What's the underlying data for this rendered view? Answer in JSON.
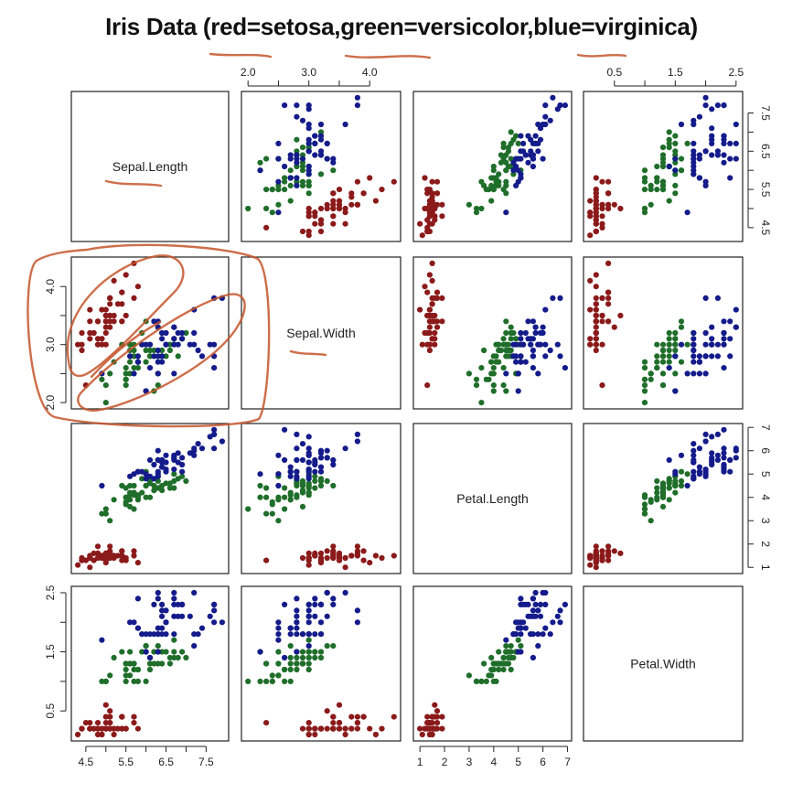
{
  "title": "Iris Data (red=setosa,green=versicolor,blue=virginica)",
  "colors": {
    "setosa": "#8b1a1a",
    "versicolor": "#1f6e2a",
    "virginica": "#141b8a",
    "annotation": "#c4552a"
  },
  "chart_data": {
    "type": "scatter",
    "title": "Iris Data (red=setosa,green=versicolor,blue=virginica)",
    "matrix": "pairs",
    "grid": false,
    "variables": [
      {
        "name": "Sepal.Length",
        "range": [
          4.3,
          7.9
        ],
        "ticks": [
          "4.5",
          "5.5",
          "6.5",
          "7.5"
        ],
        "ticks_alt": [
          "4.5",
          "5.5",
          "6.5",
          "7.5"
        ]
      },
      {
        "name": "Sepal.Width",
        "range": [
          2.0,
          4.4
        ],
        "ticks": [
          "2.0",
          "3.0",
          "4.0"
        ],
        "ticks_alt": [
          "2.0",
          "3.0",
          "4.0"
        ]
      },
      {
        "name": "Petal.Length",
        "range": [
          1.0,
          6.9
        ],
        "ticks": [
          "1",
          "2",
          "3",
          "4",
          "5",
          "6",
          "7"
        ],
        "ticks_alt": [
          "1",
          "2",
          "3",
          "4",
          "5",
          "6",
          "7"
        ]
      },
      {
        "name": "Petal.Width",
        "range": [
          0.1,
          2.5
        ],
        "ticks": [
          "0.5",
          "1.5",
          "2.5"
        ],
        "ticks_alt": [
          "0.5",
          "1.5",
          "2.5"
        ]
      }
    ],
    "top_axis_labels": {
      "Sepal.Width": [
        "2.0",
        "3.0",
        "4.0"
      ],
      "Petal.Width": [
        "0.5",
        "1.5",
        "2.5"
      ]
    },
    "right_axis_labels": {
      "Sepal.Length": [
        "4.5",
        "5.5",
        "6.5",
        "7.5"
      ],
      "Petal.Length": [
        "1",
        "2",
        "3",
        "4",
        "5",
        "6",
        "7"
      ]
    },
    "left_axis_labels": {
      "Sepal.Width": [
        "2.0",
        "3.0",
        "4.0"
      ],
      "Petal.Width": [
        "0.5",
        "1.5",
        "2.5"
      ]
    },
    "bottom_axis_labels": {
      "Sepal.Length": [
        "4.5",
        "5.5",
        "6.5",
        "7.5"
      ],
      "Petal.Length": [
        "1",
        "2",
        "3",
        "4",
        "5",
        "6",
        "7"
      ]
    },
    "series": [
      {
        "name": "setosa",
        "color": "#8b1a1a",
        "values": [
          [
            5.1,
            3.5,
            1.4,
            0.2
          ],
          [
            4.9,
            3.0,
            1.4,
            0.2
          ],
          [
            4.7,
            3.2,
            1.3,
            0.2
          ],
          [
            4.6,
            3.1,
            1.5,
            0.2
          ],
          [
            5.0,
            3.6,
            1.4,
            0.2
          ],
          [
            5.4,
            3.9,
            1.7,
            0.4
          ],
          [
            4.6,
            3.4,
            1.4,
            0.3
          ],
          [
            5.0,
            3.4,
            1.5,
            0.2
          ],
          [
            4.4,
            2.9,
            1.4,
            0.2
          ],
          [
            4.9,
            3.1,
            1.5,
            0.1
          ],
          [
            5.4,
            3.7,
            1.5,
            0.2
          ],
          [
            4.8,
            3.4,
            1.6,
            0.2
          ],
          [
            4.8,
            3.0,
            1.4,
            0.1
          ],
          [
            4.3,
            3.0,
            1.1,
            0.1
          ],
          [
            5.8,
            4.0,
            1.2,
            0.2
          ],
          [
            5.7,
            4.4,
            1.5,
            0.4
          ],
          [
            5.4,
            3.9,
            1.3,
            0.4
          ],
          [
            5.1,
            3.5,
            1.4,
            0.3
          ],
          [
            5.7,
            3.8,
            1.7,
            0.3
          ],
          [
            5.1,
            3.8,
            1.5,
            0.3
          ],
          [
            5.4,
            3.4,
            1.7,
            0.2
          ],
          [
            5.1,
            3.7,
            1.5,
            0.4
          ],
          [
            4.6,
            3.6,
            1.0,
            0.2
          ],
          [
            5.1,
            3.3,
            1.7,
            0.5
          ],
          [
            4.8,
            3.4,
            1.9,
            0.2
          ],
          [
            5.0,
            3.0,
            1.6,
            0.2
          ],
          [
            5.0,
            3.4,
            1.6,
            0.4
          ],
          [
            5.2,
            3.5,
            1.5,
            0.2
          ],
          [
            5.2,
            3.4,
            1.4,
            0.2
          ],
          [
            4.7,
            3.2,
            1.6,
            0.2
          ],
          [
            4.8,
            3.1,
            1.6,
            0.2
          ],
          [
            5.4,
            3.4,
            1.5,
            0.4
          ],
          [
            5.2,
            4.1,
            1.5,
            0.1
          ],
          [
            5.5,
            4.2,
            1.4,
            0.2
          ],
          [
            4.9,
            3.1,
            1.5,
            0.2
          ],
          [
            5.0,
            3.2,
            1.2,
            0.2
          ],
          [
            5.5,
            3.5,
            1.3,
            0.2
          ],
          [
            4.9,
            3.6,
            1.4,
            0.1
          ],
          [
            4.4,
            3.0,
            1.3,
            0.2
          ],
          [
            5.1,
            3.4,
            1.5,
            0.2
          ],
          [
            5.0,
            3.5,
            1.3,
            0.3
          ],
          [
            4.5,
            2.3,
            1.3,
            0.3
          ],
          [
            4.4,
            3.2,
            1.3,
            0.2
          ],
          [
            5.0,
            3.5,
            1.6,
            0.6
          ],
          [
            5.1,
            3.8,
            1.9,
            0.4
          ],
          [
            4.8,
            3.0,
            1.4,
            0.3
          ],
          [
            5.1,
            3.8,
            1.6,
            0.2
          ],
          [
            4.6,
            3.2,
            1.4,
            0.2
          ],
          [
            5.3,
            3.7,
            1.5,
            0.2
          ],
          [
            5.0,
            3.3,
            1.4,
            0.2
          ]
        ]
      },
      {
        "name": "versicolor",
        "color": "#1f6e2a",
        "values": [
          [
            7.0,
            3.2,
            4.7,
            1.4
          ],
          [
            6.4,
            3.2,
            4.5,
            1.5
          ],
          [
            6.9,
            3.1,
            4.9,
            1.5
          ],
          [
            5.5,
            2.3,
            4.0,
            1.3
          ],
          [
            6.5,
            2.8,
            4.6,
            1.5
          ],
          [
            5.7,
            2.8,
            4.5,
            1.3
          ],
          [
            6.3,
            3.3,
            4.7,
            1.6
          ],
          [
            4.9,
            2.4,
            3.3,
            1.0
          ],
          [
            6.6,
            2.9,
            4.6,
            1.3
          ],
          [
            5.2,
            2.7,
            3.9,
            1.4
          ],
          [
            5.0,
            2.0,
            3.5,
            1.0
          ],
          [
            5.9,
            3.0,
            4.2,
            1.5
          ],
          [
            6.0,
            2.2,
            4.0,
            1.0
          ],
          [
            6.1,
            2.9,
            4.7,
            1.4
          ],
          [
            5.6,
            2.9,
            3.6,
            1.3
          ],
          [
            6.7,
            3.1,
            4.4,
            1.4
          ],
          [
            5.6,
            3.0,
            4.5,
            1.5
          ],
          [
            5.8,
            2.7,
            4.1,
            1.0
          ],
          [
            6.2,
            2.2,
            4.5,
            1.5
          ],
          [
            5.6,
            2.5,
            3.9,
            1.1
          ],
          [
            5.9,
            3.2,
            4.8,
            1.8
          ],
          [
            6.1,
            2.8,
            4.0,
            1.3
          ],
          [
            6.3,
            2.5,
            4.9,
            1.5
          ],
          [
            6.1,
            2.8,
            4.7,
            1.2
          ],
          [
            6.4,
            2.9,
            4.3,
            1.3
          ],
          [
            6.6,
            3.0,
            4.4,
            1.4
          ],
          [
            6.8,
            2.8,
            4.8,
            1.4
          ],
          [
            6.7,
            3.0,
            5.0,
            1.7
          ],
          [
            6.0,
            2.9,
            4.5,
            1.5
          ],
          [
            5.7,
            2.6,
            3.5,
            1.0
          ],
          [
            5.5,
            2.4,
            3.8,
            1.1
          ],
          [
            5.5,
            2.4,
            3.7,
            1.0
          ],
          [
            5.8,
            2.7,
            3.9,
            1.2
          ],
          [
            6.0,
            2.7,
            5.1,
            1.6
          ],
          [
            5.4,
            3.0,
            4.5,
            1.5
          ],
          [
            6.0,
            3.4,
            4.5,
            1.6
          ],
          [
            6.7,
            3.1,
            4.7,
            1.5
          ],
          [
            6.3,
            2.3,
            4.4,
            1.3
          ],
          [
            5.6,
            3.0,
            4.1,
            1.3
          ],
          [
            5.5,
            2.5,
            4.0,
            1.3
          ],
          [
            5.5,
            2.6,
            4.4,
            1.2
          ],
          [
            6.1,
            3.0,
            4.6,
            1.4
          ],
          [
            5.8,
            2.6,
            4.0,
            1.2
          ],
          [
            5.0,
            2.3,
            3.3,
            1.0
          ],
          [
            5.6,
            2.7,
            4.2,
            1.3
          ],
          [
            5.7,
            3.0,
            4.2,
            1.2
          ],
          [
            5.7,
            2.9,
            4.2,
            1.3
          ],
          [
            6.2,
            2.9,
            4.3,
            1.3
          ],
          [
            5.1,
            2.5,
            3.0,
            1.1
          ],
          [
            5.7,
            2.8,
            4.1,
            1.3
          ]
        ]
      },
      {
        "name": "virginica",
        "color": "#141b8a",
        "values": [
          [
            6.3,
            3.3,
            6.0,
            2.5
          ],
          [
            5.8,
            2.7,
            5.1,
            1.9
          ],
          [
            7.1,
            3.0,
            5.9,
            2.1
          ],
          [
            6.3,
            2.9,
            5.6,
            1.8
          ],
          [
            6.5,
            3.0,
            5.8,
            2.2
          ],
          [
            7.6,
            3.0,
            6.6,
            2.1
          ],
          [
            4.9,
            2.5,
            4.5,
            1.7
          ],
          [
            7.3,
            2.9,
            6.3,
            1.8
          ],
          [
            6.7,
            2.5,
            5.8,
            1.8
          ],
          [
            7.2,
            3.6,
            6.1,
            2.5
          ],
          [
            6.5,
            3.2,
            5.1,
            2.0
          ],
          [
            6.4,
            2.7,
            5.3,
            1.9
          ],
          [
            6.8,
            3.0,
            5.5,
            2.1
          ],
          [
            5.7,
            2.5,
            5.0,
            2.0
          ],
          [
            5.8,
            2.8,
            5.1,
            2.4
          ],
          [
            6.4,
            3.2,
            5.3,
            2.3
          ],
          [
            6.5,
            3.0,
            5.5,
            1.8
          ],
          [
            7.7,
            3.8,
            6.7,
            2.2
          ],
          [
            7.7,
            2.6,
            6.9,
            2.3
          ],
          [
            6.0,
            2.2,
            5.0,
            1.5
          ],
          [
            6.9,
            3.2,
            5.7,
            2.3
          ],
          [
            5.6,
            2.8,
            4.9,
            2.0
          ],
          [
            7.7,
            2.8,
            6.7,
            2.0
          ],
          [
            6.3,
            2.7,
            4.9,
            1.8
          ],
          [
            6.7,
            3.3,
            5.7,
            2.1
          ],
          [
            7.2,
            3.2,
            6.0,
            1.8
          ],
          [
            6.2,
            2.8,
            4.8,
            1.8
          ],
          [
            6.1,
            3.0,
            4.9,
            1.8
          ],
          [
            6.4,
            2.8,
            5.6,
            2.1
          ],
          [
            7.2,
            3.0,
            5.8,
            1.6
          ],
          [
            7.4,
            2.8,
            6.1,
            1.9
          ],
          [
            7.9,
            3.8,
            6.4,
            2.0
          ],
          [
            6.4,
            2.8,
            5.6,
            2.2
          ],
          [
            6.3,
            2.8,
            5.1,
            1.5
          ],
          [
            6.1,
            2.6,
            5.6,
            1.4
          ],
          [
            7.7,
            3.0,
            6.1,
            2.3
          ],
          [
            6.3,
            3.4,
            5.6,
            2.4
          ],
          [
            6.4,
            3.1,
            5.5,
            1.8
          ],
          [
            6.0,
            3.0,
            4.8,
            1.8
          ],
          [
            6.9,
            3.1,
            5.4,
            2.1
          ],
          [
            6.7,
            3.1,
            5.6,
            2.4
          ],
          [
            6.9,
            3.1,
            5.1,
            2.3
          ],
          [
            5.8,
            2.7,
            5.1,
            1.9
          ],
          [
            6.8,
            3.2,
            5.9,
            2.3
          ],
          [
            6.7,
            3.3,
            5.7,
            2.5
          ],
          [
            6.7,
            3.0,
            5.2,
            2.3
          ],
          [
            6.3,
            2.5,
            5.0,
            1.9
          ],
          [
            6.5,
            3.0,
            5.2,
            2.0
          ],
          [
            6.2,
            3.4,
            5.4,
            2.3
          ],
          [
            5.9,
            3.0,
            5.1,
            1.8
          ]
        ]
      }
    ]
  }
}
